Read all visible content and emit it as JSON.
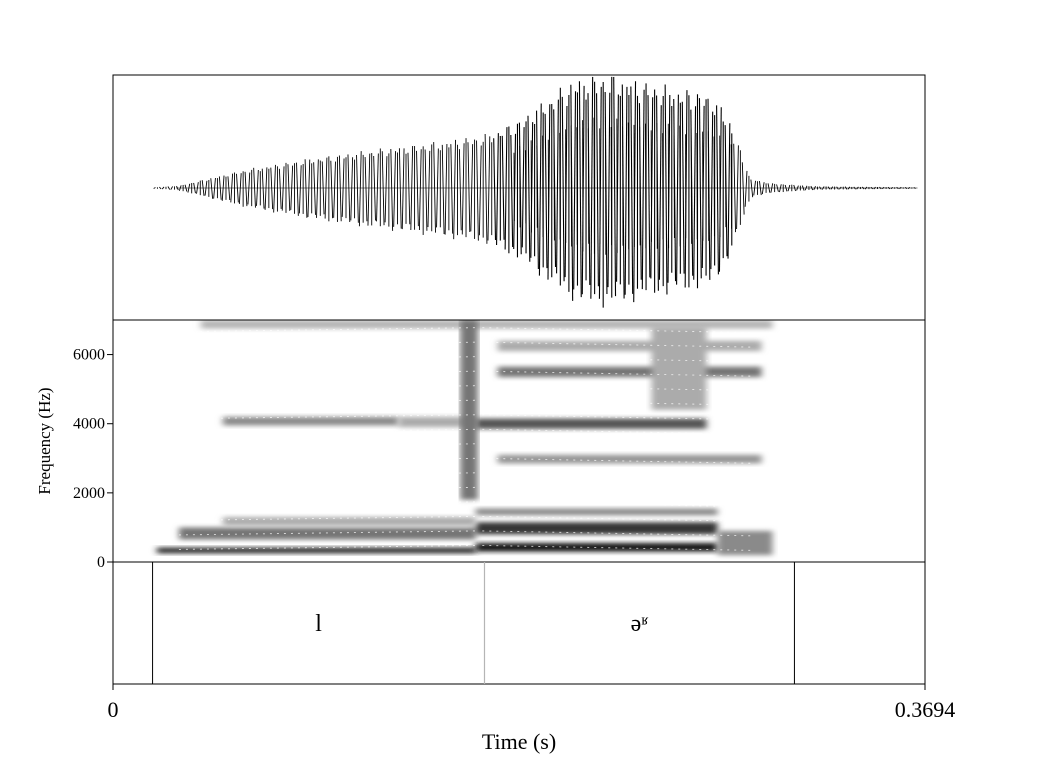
{
  "chart_data": {
    "type": "spectrogram",
    "panels": [
      "waveform",
      "spectrogram",
      "textgrid"
    ],
    "xlabel": "Time (s)",
    "xlim": [
      0,
      0.3694
    ],
    "x_tick_labels": [
      "0",
      "0.3694"
    ],
    "ylabel": "Frequency (Hz)",
    "ylim": [
      0,
      7000
    ],
    "y_ticks": [
      0,
      2000,
      4000,
      6000
    ],
    "y_tick_labels": [
      "0",
      "2000",
      "4000",
      "6000"
    ],
    "waveform": {
      "signal_start": 0.015,
      "signal_end": 0.366,
      "envelope": [
        {
          "t": 0.015,
          "a": 0.0
        },
        {
          "t": 0.03,
          "a": 0.02
        },
        {
          "t": 0.06,
          "a": 0.16
        },
        {
          "t": 0.09,
          "a": 0.26
        },
        {
          "t": 0.12,
          "a": 0.34
        },
        {
          "t": 0.15,
          "a": 0.41
        },
        {
          "t": 0.17,
          "a": 0.47
        },
        {
          "t": 0.185,
          "a": 0.6
        },
        {
          "t": 0.2,
          "a": 0.82
        },
        {
          "t": 0.21,
          "a": 0.96
        },
        {
          "t": 0.225,
          "a": 1.0
        },
        {
          "t": 0.24,
          "a": 0.94
        },
        {
          "t": 0.255,
          "a": 0.88
        },
        {
          "t": 0.27,
          "a": 0.84
        },
        {
          "t": 0.273,
          "a": 0.8
        },
        {
          "t": 0.28,
          "a": 0.62
        },
        {
          "t": 0.29,
          "a": 0.08
        },
        {
          "t": 0.3,
          "a": 0.04
        },
        {
          "t": 0.32,
          "a": 0.015
        },
        {
          "t": 0.366,
          "a": 0.005
        }
      ]
    },
    "spectrogram_bands": [
      {
        "t0": 0.02,
        "t1": 0.165,
        "f0": 250,
        "f1": 420,
        "level": 0.9
      },
      {
        "t0": 0.165,
        "t1": 0.275,
        "f0": 300,
        "f1": 550,
        "level": 1.0
      },
      {
        "t0": 0.03,
        "t1": 0.165,
        "f0": 650,
        "f1": 1000,
        "level": 0.55
      },
      {
        "t0": 0.165,
        "t1": 0.275,
        "f0": 800,
        "f1": 1150,
        "level": 0.85
      },
      {
        "t0": 0.275,
        "t1": 0.3,
        "f0": 200,
        "f1": 900,
        "level": 0.45
      },
      {
        "t0": 0.05,
        "t1": 0.165,
        "f0": 1050,
        "f1": 1300,
        "level": 0.3
      },
      {
        "t0": 0.165,
        "t1": 0.275,
        "f0": 1350,
        "f1": 1550,
        "level": 0.45
      },
      {
        "t0": 0.05,
        "t1": 0.13,
        "f0": 3950,
        "f1": 4200,
        "level": 0.45
      },
      {
        "t0": 0.13,
        "t1": 0.165,
        "f0": 3900,
        "f1": 4200,
        "level": 0.3
      },
      {
        "t0": 0.165,
        "t1": 0.27,
        "f0": 3850,
        "f1": 4150,
        "level": 0.7
      },
      {
        "t0": 0.175,
        "t1": 0.295,
        "f0": 2850,
        "f1": 3100,
        "level": 0.4
      },
      {
        "t0": 0.175,
        "t1": 0.295,
        "f0": 5350,
        "f1": 5650,
        "level": 0.55
      },
      {
        "t0": 0.175,
        "t1": 0.295,
        "f0": 6100,
        "f1": 6400,
        "level": 0.3
      },
      {
        "t0": 0.04,
        "t1": 0.3,
        "f0": 6750,
        "f1": 7000,
        "level": 0.25
      },
      {
        "t0": 0.158,
        "t1": 0.166,
        "f0": 1800,
        "f1": 7000,
        "level": 0.55
      },
      {
        "t0": 0.245,
        "t1": 0.27,
        "f0": 4400,
        "f1": 6800,
        "level": 0.3
      }
    ],
    "textgrid": {
      "boundaries": [
        {
          "t": 0.018,
          "style": "solid"
        },
        {
          "t": 0.169,
          "style": "light"
        },
        {
          "t": 0.31,
          "style": "solid"
        }
      ],
      "intervals": [
        {
          "t0": 0.018,
          "t1": 0.169,
          "label": "l"
        },
        {
          "t0": 0.169,
          "t1": 0.31,
          "label": "əʶ"
        }
      ]
    }
  }
}
